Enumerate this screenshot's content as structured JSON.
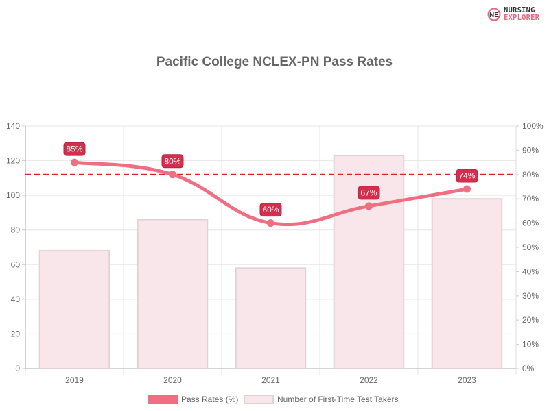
{
  "logo": {
    "line1": "NURSING",
    "line2": "EXPLORER",
    "mark": "NE"
  },
  "colors": {
    "line": "#ee6e82",
    "bar_fill": "#f9e6ea",
    "bar_stroke": "#e2d2d6",
    "label_bg": "#d42e4c",
    "threshold": "#e2202a",
    "grid": "#e6e6e6",
    "axis_text": "#666666"
  },
  "chart_data": {
    "type": "bar",
    "title": "Pacific College NCLEX-PN Pass Rates",
    "categories": [
      "2019",
      "2020",
      "2021",
      "2022",
      "2023"
    ],
    "series": [
      {
        "name": "Pass Rates (%)",
        "type": "line",
        "axis": "right",
        "values": [
          85,
          80,
          60,
          67,
          74
        ],
        "value_labels": [
          "85%",
          "80%",
          "60%",
          "67%",
          "74%"
        ]
      },
      {
        "name": "Number of First-Time Test Takers",
        "type": "bar",
        "axis": "left",
        "values": [
          68,
          86,
          58,
          123,
          98
        ]
      }
    ],
    "threshold_line": {
      "axis": "right",
      "value": 80,
      "style": "dashed"
    },
    "y_left": {
      "min": 0,
      "max": 140,
      "ticks": [
        "0",
        "20",
        "40",
        "60",
        "80",
        "100",
        "120",
        "140"
      ]
    },
    "y_right": {
      "min": 0,
      "max": 100,
      "ticks": [
        "0%",
        "10%",
        "20%",
        "30%",
        "40%",
        "50%",
        "60%",
        "70%",
        "80%",
        "90%",
        "100%"
      ]
    },
    "grid": true,
    "legend": "bottom"
  }
}
